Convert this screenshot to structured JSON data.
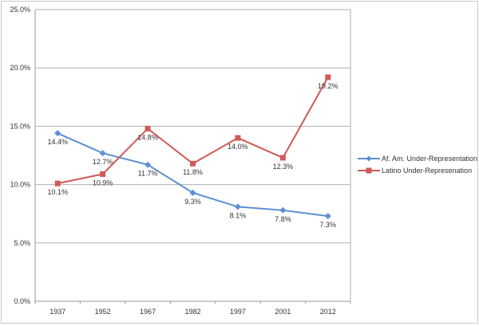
{
  "chart_data": {
    "type": "line",
    "title": "",
    "xlabel": "",
    "ylabel": "",
    "categories": [
      "1937",
      "1952",
      "1967",
      "1982",
      "1997",
      "2001",
      "2012"
    ],
    "ylim": [
      0,
      25
    ],
    "yticks": [
      "0.0%",
      "5.0%",
      "10.0%",
      "15.0%",
      "20.0%",
      "25.0%"
    ],
    "grid": true,
    "legend_position": "right",
    "series": [
      {
        "name": "Af. Am. Under-Representation",
        "color": "#5b8fd1",
        "marker": "diamond",
        "values": [
          14.4,
          12.7,
          11.7,
          9.3,
          8.1,
          7.8,
          7.3
        ],
        "labels": [
          "14.4%",
          "12.7%",
          "11.7%",
          "9.3%",
          "8.1%",
          "7.8%",
          "7.3%"
        ]
      },
      {
        "name": "Latino Under-Represenation",
        "color": "#d05a57",
        "marker": "square",
        "values": [
          10.1,
          10.9,
          14.8,
          11.8,
          14.0,
          12.3,
          19.2
        ],
        "labels": [
          "10.1%",
          "10.9%",
          "14.8%",
          "11.8%",
          "14.0%",
          "12.3%",
          "19.2%"
        ]
      }
    ]
  }
}
